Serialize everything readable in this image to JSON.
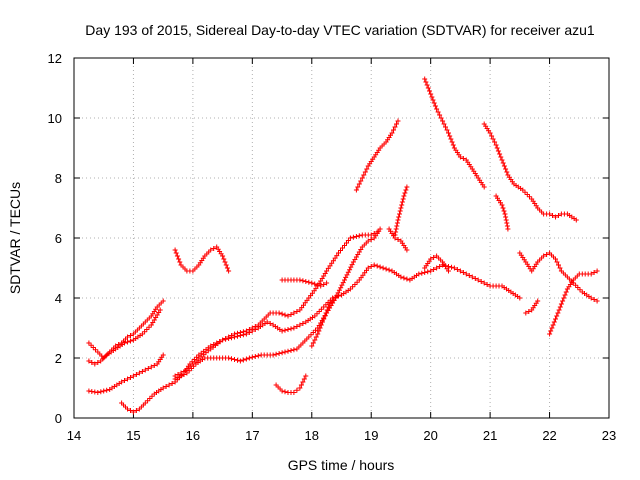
{
  "chart_data": {
    "type": "scatter",
    "title": "Day 193 of 2015, Sidereal Day-to-day VTEC variation (SDTVAR) for receiver azu1",
    "xlabel": "GPS time / hours",
    "ylabel": "SDTVAR / TECUs",
    "xlim": [
      14,
      23
    ],
    "ylim": [
      0,
      12
    ],
    "xticks": [
      14,
      15,
      16,
      17,
      18,
      19,
      20,
      21,
      22,
      23
    ],
    "yticks": [
      0,
      2,
      4,
      6,
      8,
      10,
      12
    ],
    "grid": true,
    "marker": "+",
    "color": "#ff0000",
    "series": [
      {
        "name": "s1",
        "points": [
          [
            14.25,
            2.5
          ],
          [
            14.4,
            2.2
          ],
          [
            14.5,
            2.0
          ],
          [
            14.6,
            2.2
          ],
          [
            14.7,
            2.4
          ],
          [
            14.8,
            2.5
          ],
          [
            14.9,
            2.7
          ],
          [
            15.0,
            2.8
          ],
          [
            15.1,
            3.0
          ],
          [
            15.2,
            3.2
          ],
          [
            15.3,
            3.4
          ],
          [
            15.4,
            3.7
          ],
          [
            15.5,
            3.9
          ]
        ]
      },
      {
        "name": "s2",
        "points": [
          [
            14.25,
            1.9
          ],
          [
            14.35,
            1.8
          ],
          [
            14.45,
            1.9
          ],
          [
            14.55,
            2.1
          ],
          [
            14.7,
            2.3
          ],
          [
            14.85,
            2.5
          ],
          [
            15.0,
            2.6
          ],
          [
            15.15,
            2.8
          ],
          [
            15.3,
            3.1
          ],
          [
            15.45,
            3.6
          ]
        ]
      },
      {
        "name": "s3",
        "points": [
          [
            14.25,
            0.9
          ],
          [
            14.4,
            0.85
          ],
          [
            14.6,
            0.95
          ],
          [
            14.8,
            1.2
          ],
          [
            15.0,
            1.4
          ],
          [
            15.2,
            1.6
          ],
          [
            15.4,
            1.8
          ],
          [
            15.5,
            2.1
          ]
        ]
      },
      {
        "name": "s4",
        "points": [
          [
            14.8,
            0.5
          ],
          [
            14.9,
            0.3
          ],
          [
            15.0,
            0.2
          ],
          [
            15.1,
            0.3
          ],
          [
            15.2,
            0.5
          ],
          [
            15.35,
            0.8
          ],
          [
            15.5,
            1.0
          ],
          [
            15.7,
            1.2
          ],
          [
            15.85,
            1.5
          ],
          [
            15.95,
            1.8
          ],
          [
            16.1,
            2.1
          ],
          [
            16.3,
            2.4
          ],
          [
            16.5,
            2.6
          ],
          [
            16.7,
            2.7
          ],
          [
            16.9,
            2.8
          ],
          [
            17.1,
            3.0
          ],
          [
            17.25,
            3.2
          ],
          [
            17.35,
            3.1
          ],
          [
            17.5,
            2.9
          ],
          [
            17.7,
            3.0
          ],
          [
            17.9,
            3.2
          ],
          [
            18.05,
            3.4
          ],
          [
            18.2,
            3.7
          ],
          [
            18.35,
            4.0
          ],
          [
            18.5,
            4.1
          ],
          [
            18.65,
            4.3
          ],
          [
            18.8,
            4.6
          ],
          [
            18.95,
            5.0
          ],
          [
            19.05,
            5.1
          ],
          [
            19.2,
            5.0
          ],
          [
            19.35,
            4.9
          ],
          [
            19.5,
            4.7
          ],
          [
            19.65,
            4.6
          ],
          [
            19.8,
            4.8
          ],
          [
            20.0,
            4.9
          ],
          [
            20.2,
            5.1
          ],
          [
            20.4,
            5.0
          ],
          [
            20.6,
            4.8
          ],
          [
            20.8,
            4.6
          ],
          [
            21.0,
            4.4
          ],
          [
            21.2,
            4.4
          ],
          [
            21.35,
            4.2
          ],
          [
            21.5,
            4.0
          ]
        ]
      },
      {
        "name": "s5",
        "points": [
          [
            15.7,
            1.4
          ],
          [
            15.9,
            1.6
          ],
          [
            16.1,
            2.0
          ],
          [
            16.3,
            2.3
          ],
          [
            16.5,
            2.6
          ],
          [
            16.7,
            2.8
          ],
          [
            16.9,
            2.9
          ],
          [
            17.1,
            3.1
          ],
          [
            17.3,
            3.5
          ],
          [
            17.45,
            3.5
          ],
          [
            17.6,
            3.4
          ],
          [
            17.8,
            3.6
          ],
          [
            17.95,
            4.0
          ],
          [
            18.1,
            4.4
          ],
          [
            18.25,
            4.9
          ],
          [
            18.45,
            5.5
          ],
          [
            18.65,
            6.0
          ],
          [
            18.85,
            6.1
          ],
          [
            19.0,
            6.1
          ],
          [
            19.1,
            6.2
          ]
        ]
      },
      {
        "name": "s6",
        "points": [
          [
            15.7,
            1.3
          ],
          [
            15.9,
            1.5
          ],
          [
            16.05,
            1.8
          ],
          [
            16.2,
            2.0
          ],
          [
            16.4,
            2.0
          ],
          [
            16.6,
            2.0
          ],
          [
            16.8,
            1.9
          ],
          [
            16.95,
            2.0
          ],
          [
            17.15,
            2.1
          ],
          [
            17.35,
            2.1
          ],
          [
            17.55,
            2.2
          ],
          [
            17.75,
            2.3
          ],
          [
            17.95,
            2.7
          ],
          [
            18.1,
            3.0
          ],
          [
            18.25,
            3.5
          ],
          [
            18.4,
            4.0
          ],
          [
            18.55,
            4.6
          ],
          [
            18.7,
            5.2
          ],
          [
            18.85,
            5.7
          ],
          [
            18.95,
            5.9
          ],
          [
            19.05,
            6.0
          ],
          [
            19.15,
            6.3
          ]
        ]
      },
      {
        "name": "s7",
        "points": [
          [
            15.7,
            5.6
          ],
          [
            15.8,
            5.1
          ],
          [
            15.9,
            4.9
          ],
          [
            16.0,
            4.9
          ],
          [
            16.1,
            5.1
          ],
          [
            16.2,
            5.4
          ],
          [
            16.3,
            5.6
          ],
          [
            16.4,
            5.7
          ],
          [
            16.5,
            5.4
          ],
          [
            16.6,
            4.9
          ]
        ]
      },
      {
        "name": "s8",
        "points": [
          [
            17.4,
            1.1
          ],
          [
            17.5,
            0.9
          ],
          [
            17.6,
            0.85
          ],
          [
            17.7,
            0.85
          ],
          [
            17.8,
            1.0
          ],
          [
            17.9,
            1.4
          ]
        ]
      },
      {
        "name": "s9",
        "points": [
          [
            17.5,
            4.6
          ],
          [
            17.6,
            4.6
          ],
          [
            17.8,
            4.6
          ],
          [
            18.0,
            4.5
          ],
          [
            18.15,
            4.4
          ],
          [
            18.25,
            4.5
          ]
        ]
      },
      {
        "name": "s10",
        "points": [
          [
            18.0,
            2.4
          ],
          [
            18.1,
            2.8
          ],
          [
            18.2,
            3.3
          ],
          [
            18.3,
            3.8
          ],
          [
            18.4,
            4.0
          ]
        ]
      },
      {
        "name": "s11",
        "points": [
          [
            18.75,
            7.6
          ],
          [
            18.85,
            8.0
          ],
          [
            18.95,
            8.4
          ],
          [
            19.05,
            8.7
          ],
          [
            19.15,
            9.0
          ],
          [
            19.25,
            9.2
          ],
          [
            19.35,
            9.5
          ],
          [
            19.45,
            9.9
          ]
        ]
      },
      {
        "name": "s12",
        "points": [
          [
            19.3,
            6.3
          ],
          [
            19.4,
            6.0
          ],
          [
            19.5,
            5.9
          ],
          [
            19.6,
            5.6
          ]
        ]
      },
      {
        "name": "s13",
        "points": [
          [
            19.4,
            6.1
          ],
          [
            19.45,
            6.6
          ],
          [
            19.5,
            7.0
          ],
          [
            19.55,
            7.4
          ],
          [
            19.6,
            7.7
          ]
        ]
      },
      {
        "name": "s14",
        "points": [
          [
            19.9,
            11.3
          ],
          [
            20.0,
            10.8
          ],
          [
            20.1,
            10.3
          ],
          [
            20.2,
            9.9
          ],
          [
            20.3,
            9.5
          ],
          [
            20.4,
            9.0
          ],
          [
            20.5,
            8.7
          ],
          [
            20.6,
            8.6
          ],
          [
            20.7,
            8.3
          ],
          [
            20.8,
            8.0
          ],
          [
            20.9,
            7.7
          ]
        ]
      },
      {
        "name": "s15",
        "points": [
          [
            19.9,
            5.0
          ],
          [
            20.0,
            5.3
          ],
          [
            20.1,
            5.4
          ],
          [
            20.2,
            5.2
          ],
          [
            20.3,
            4.9
          ]
        ]
      },
      {
        "name": "s16",
        "points": [
          [
            20.9,
            9.8
          ],
          [
            21.0,
            9.5
          ],
          [
            21.1,
            9.1
          ],
          [
            21.2,
            8.6
          ],
          [
            21.3,
            8.1
          ],
          [
            21.4,
            7.8
          ],
          [
            21.55,
            7.6
          ],
          [
            21.7,
            7.3
          ],
          [
            21.8,
            7.0
          ],
          [
            21.9,
            6.8
          ],
          [
            22.0,
            6.8
          ],
          [
            22.1,
            6.7
          ],
          [
            22.2,
            6.8
          ],
          [
            22.3,
            6.8
          ],
          [
            22.45,
            6.6
          ]
        ]
      },
      {
        "name": "s17",
        "points": [
          [
            21.1,
            7.4
          ],
          [
            21.2,
            7.1
          ],
          [
            21.25,
            6.8
          ],
          [
            21.3,
            6.3
          ]
        ]
      },
      {
        "name": "s18",
        "points": [
          [
            21.5,
            5.5
          ],
          [
            21.6,
            5.2
          ],
          [
            21.7,
            4.9
          ],
          [
            21.8,
            5.2
          ],
          [
            21.9,
            5.4
          ],
          [
            22.0,
            5.5
          ],
          [
            22.1,
            5.3
          ],
          [
            22.2,
            4.9
          ],
          [
            22.3,
            4.7
          ],
          [
            22.4,
            4.5
          ],
          [
            22.55,
            4.2
          ],
          [
            22.7,
            4.0
          ],
          [
            22.8,
            3.9
          ]
        ]
      },
      {
        "name": "s19",
        "points": [
          [
            21.6,
            3.5
          ],
          [
            21.7,
            3.6
          ],
          [
            21.8,
            3.9
          ]
        ]
      },
      {
        "name": "s20",
        "points": [
          [
            22.0,
            2.8
          ],
          [
            22.1,
            3.3
          ],
          [
            22.2,
            3.8
          ],
          [
            22.3,
            4.3
          ],
          [
            22.4,
            4.6
          ],
          [
            22.5,
            4.8
          ],
          [
            22.6,
            4.8
          ],
          [
            22.7,
            4.8
          ],
          [
            22.8,
            4.9
          ]
        ]
      }
    ]
  }
}
